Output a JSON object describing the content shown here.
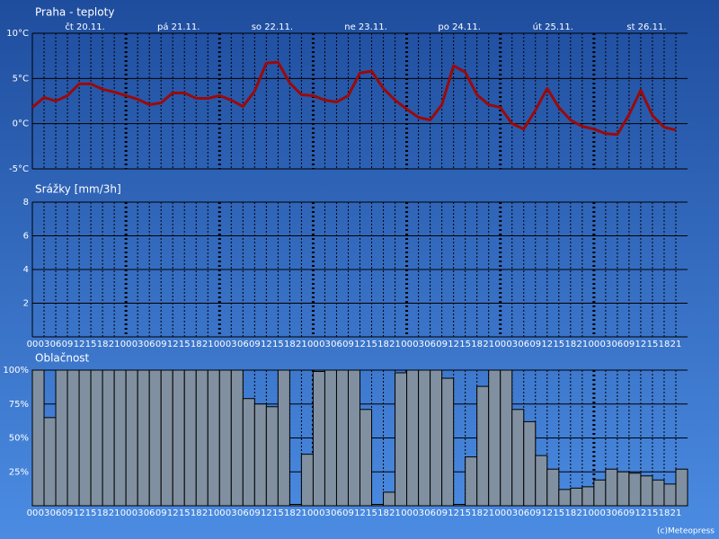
{
  "chart_data": [
    {
      "type": "line",
      "title": "Praha - teploty",
      "days": [
        "čt 20.11.",
        "pá 21.11.",
        "so 22.11.",
        "ne 23.11.",
        "po 24.11.",
        "út 25.11.",
        "st 26.11."
      ],
      "values": [
        1.8,
        2.9,
        2.5,
        3.1,
        4.4,
        4.4,
        3.8,
        3.5,
        3.1,
        2.7,
        2.1,
        2.3,
        3.4,
        3.4,
        2.8,
        2.8,
        3.1,
        2.6,
        1.9,
        3.6,
        6.7,
        6.8,
        4.5,
        3.2,
        3.1,
        2.6,
        2.4,
        3.1,
        5.6,
        5.8,
        3.9,
        2.6,
        1.6,
        0.7,
        0.4,
        2.1,
        6.4,
        5.7,
        3.2,
        2.1,
        1.8,
        0.0,
        -0.6,
        1.5,
        3.9,
        1.8,
        0.4,
        -0.3,
        -0.6,
        -1.1,
        -1.2,
        1.0,
        3.7,
        0.9,
        -0.4,
        -0.7
      ],
      "color": "#9a0a0a",
      "ylim": [
        -5,
        10
      ],
      "yticks": [
        {
          "value": -5,
          "label": "-5°C"
        },
        {
          "value": 0,
          "label": "0°C"
        },
        {
          "value": 5,
          "label": "5°C"
        },
        {
          "value": 10,
          "label": "10°C"
        }
      ],
      "grid": true
    },
    {
      "type": "bar",
      "title": "Srážky [mm/3h]",
      "categories": [
        "00",
        "03",
        "06",
        "09",
        "12",
        "15",
        "18",
        "21",
        "00",
        "03",
        "06",
        "09",
        "12",
        "15",
        "18",
        "21",
        "00",
        "03",
        "06",
        "09",
        "12",
        "15",
        "18",
        "21",
        "00",
        "03",
        "06",
        "09",
        "12",
        "15",
        "18",
        "21",
        "00",
        "03",
        "06",
        "09",
        "12",
        "15",
        "18",
        "21",
        "00",
        "03",
        "06",
        "09",
        "12",
        "15",
        "18",
        "21",
        "00",
        "03",
        "06",
        "09",
        "12",
        "15",
        "18",
        "21"
      ],
      "values": [
        0,
        0,
        0,
        0,
        0,
        0,
        0,
        0,
        0,
        0,
        0,
        0,
        0,
        0,
        0,
        0,
        0,
        0,
        0,
        0,
        0,
        0,
        0,
        0,
        0,
        0,
        0,
        0,
        0,
        0,
        0,
        0,
        0,
        0,
        0,
        0,
        0,
        0,
        0,
        0,
        0,
        0,
        0,
        0,
        0,
        0,
        0,
        0,
        0,
        0,
        0,
        0,
        0,
        0,
        0,
        0
      ],
      "color": "#8090a0",
      "ylim": [
        0,
        8
      ],
      "yticks": [
        2,
        4,
        6,
        8
      ],
      "grid": true
    },
    {
      "type": "bar",
      "title": "Oblačnost",
      "categories": [
        "00",
        "03",
        "06",
        "09",
        "12",
        "15",
        "18",
        "21",
        "00",
        "03",
        "06",
        "09",
        "12",
        "15",
        "18",
        "21",
        "00",
        "03",
        "06",
        "09",
        "12",
        "15",
        "18",
        "21",
        "00",
        "03",
        "06",
        "09",
        "12",
        "15",
        "18",
        "21",
        "00",
        "03",
        "06",
        "09",
        "12",
        "15",
        "18",
        "21",
        "00",
        "03",
        "06",
        "09",
        "12",
        "15",
        "18",
        "21",
        "00",
        "03",
        "06",
        "09",
        "12",
        "15",
        "18",
        "21"
      ],
      "values": [
        100,
        65,
        100,
        100,
        100,
        100,
        100,
        100,
        100,
        100,
        100,
        100,
        100,
        100,
        100,
        100,
        100,
        100,
        79,
        75,
        73,
        100,
        1,
        38,
        99,
        100,
        100,
        100,
        71,
        1,
        10,
        98,
        100,
        100,
        100,
        94,
        1,
        36,
        88,
        100,
        100,
        71,
        62,
        37,
        27,
        12,
        13,
        14,
        19,
        27,
        25,
        24,
        22,
        19,
        16,
        27
      ],
      "color": "#8090a0",
      "ylim": [
        0,
        100
      ],
      "yticks": [
        {
          "value": 25,
          "label": "25%"
        },
        {
          "value": 50,
          "label": "50%"
        },
        {
          "value": 75,
          "label": "75%"
        },
        {
          "value": 100,
          "label": "100%"
        }
      ],
      "grid": true
    }
  ],
  "footer": "(c)Meteopress"
}
